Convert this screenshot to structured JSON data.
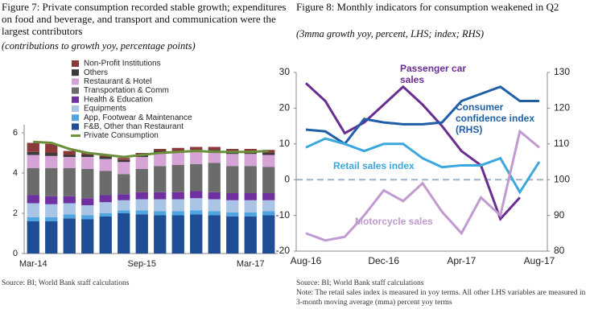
{
  "chart_data": [
    {
      "type": "bar",
      "stacked": true,
      "title": "Figure 7: Private consumption recorded stable growth; expenditures on food and beverage, and transport and communication were the largest contributors",
      "subtitle": "(contributions to growth yoy, percentage points)",
      "source": "Source: BI; World Bank staff calculations",
      "categories": [
        "Mar-14",
        null,
        null,
        null,
        null,
        null,
        "Sep-15",
        null,
        null,
        null,
        null,
        null,
        "Mar-17",
        null
      ],
      "ylim": [
        0,
        6
      ],
      "yticks": [
        0,
        2,
        4,
        6
      ],
      "series": [
        {
          "name": "F&B, Other than Restaurant",
          "color": "#1f4e96",
          "values": [
            1.6,
            1.6,
            1.75,
            1.7,
            1.85,
            2.0,
            1.95,
            1.9,
            1.9,
            1.95,
            1.9,
            1.85,
            1.85,
            1.9
          ]
        },
        {
          "name": "App, Footwear & Maintenance",
          "color": "#4ea5e0",
          "values": [
            0.2,
            0.2,
            0.2,
            0.2,
            0.15,
            0.15,
            0.2,
            0.2,
            0.2,
            0.2,
            0.2,
            0.2,
            0.2,
            0.2
          ]
        },
        {
          "name": "Equipments",
          "color": "#a9c4e4",
          "values": [
            0.7,
            0.65,
            0.55,
            0.5,
            0.55,
            0.5,
            0.55,
            0.6,
            0.6,
            0.6,
            0.6,
            0.6,
            0.6,
            0.55
          ]
        },
        {
          "name": "Health & Education",
          "color": "#7030a0",
          "values": [
            0.4,
            0.4,
            0.35,
            0.35,
            0.35,
            0.3,
            0.35,
            0.35,
            0.35,
            0.35,
            0.35,
            0.35,
            0.35,
            0.35
          ]
        },
        {
          "name": "Transportation & Comm",
          "color": "#6b6b6b",
          "values": [
            1.35,
            1.4,
            1.4,
            1.45,
            1.2,
            1.0,
            1.15,
            1.3,
            1.35,
            1.35,
            1.45,
            1.35,
            1.35,
            1.3
          ]
        },
        {
          "name": "Restaurant & Hotel",
          "color": "#d5a3d6",
          "values": [
            0.65,
            0.6,
            0.55,
            0.6,
            0.6,
            0.6,
            0.6,
            0.65,
            0.6,
            0.6,
            0.55,
            0.6,
            0.6,
            0.6
          ]
        },
        {
          "name": "Others",
          "color": "#3a3a3a",
          "values": [
            0.15,
            0.15,
            0.1,
            0.1,
            0.1,
            0.1,
            0.1,
            0.1,
            0.1,
            0.1,
            0.1,
            0.1,
            0.1,
            0.1
          ]
        },
        {
          "name": "Non-Profit Institutions",
          "color": "#8b3a3a",
          "values": [
            0.45,
            0.45,
            0.2,
            0.1,
            0.1,
            0.1,
            0.1,
            0.1,
            0.15,
            0.15,
            0.15,
            0.15,
            0.15,
            0.15
          ]
        },
        {
          "name": "Private Consumption",
          "type": "line",
          "color": "#6b8e3a",
          "values": [
            5.55,
            5.5,
            5.2,
            5.0,
            4.9,
            4.8,
            4.9,
            5.0,
            5.05,
            5.1,
            5.05,
            5.05,
            5.05,
            5.1
          ]
        }
      ]
    },
    {
      "type": "line",
      "title": "Figure 8: Monthly indicators for consumption weakened in Q2",
      "subtitle": "(3mma growth yoy, percent, LHS; index; RHS)",
      "source": "Source: BI; World Bank staff calculations",
      "note": "Note: The retail sales index is measured in yoy terms. All other LHS variables are measured in 3-month moving average (mma) percent yoy terms",
      "categories": [
        "Aug-16",
        null,
        null,
        null,
        "Dec-16",
        null,
        null,
        null,
        "Apr-17",
        null,
        null,
        null,
        "Aug-17"
      ],
      "ylim": [
        -20,
        30
      ],
      "yticks": [
        -20,
        -10,
        0,
        10,
        20,
        30
      ],
      "y2lim": [
        80,
        130
      ],
      "y2ticks": [
        80,
        90,
        100,
        110,
        120,
        130
      ],
      "series": [
        {
          "name": "Passenger car sales",
          "color": "#6a2d91",
          "values": [
            27,
            22,
            13,
            16,
            21,
            26,
            21,
            15,
            8,
            4,
            -11,
            -5,
            null
          ]
        },
        {
          "name": "Consumer confidence index (RHS)",
          "axis": "y2",
          "color": "#1f5fa8",
          "values": [
            114,
            113.5,
            110,
            117,
            116,
            115.5,
            115.5,
            116,
            122,
            124,
            126,
            122,
            122
          ]
        },
        {
          "name": "Retail sales index",
          "color": "#3aa8dc",
          "values": [
            9,
            11.5,
            10,
            8,
            10,
            10,
            6,
            3.5,
            4,
            4,
            6,
            -3.5,
            5
          ]
        },
        {
          "name": "Motorcycle sales",
          "color": "#c09ad0",
          "values": [
            -15,
            -17,
            -16,
            -10,
            -3,
            -6,
            -1,
            -9,
            -15,
            -5,
            -10,
            13.5,
            9
          ]
        }
      ]
    }
  ]
}
